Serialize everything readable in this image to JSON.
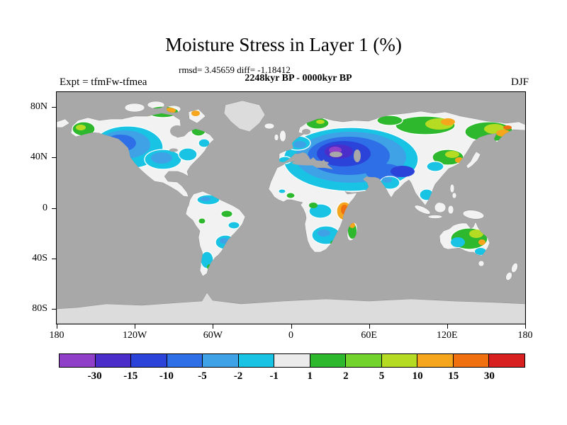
{
  "header": {
    "title": "Moisture Stress in Layer 1 (%)",
    "stats_line": "rmsd= 3.45659 diff= -1.18412",
    "period_line": "2248kyr BP - 0000kyr BP",
    "experiment_label": "Expt = tfmFw-tfmea",
    "season_label": "DJF"
  },
  "axes": {
    "lat_tick_labels": [
      "80N",
      "40N",
      "0",
      "40S",
      "80S"
    ],
    "lat_tick_degrees": [
      80,
      40,
      0,
      -40,
      -80
    ],
    "lon_tick_labels": [
      "180",
      "120W",
      "60W",
      "0",
      "60E",
      "120E",
      "180"
    ]
  },
  "colorbar": {
    "tick_labels": [
      "-30",
      "-15",
      "-10",
      "-5",
      "-2",
      "-1",
      "1",
      "2",
      "5",
      "10",
      "15",
      "30"
    ],
    "segment_colors": [
      "#9040c8",
      "#4b2ec9",
      "#2b43d8",
      "#2e6fe8",
      "#3fa2e6",
      "#19c3e3",
      "#ebebeb",
      "#2db82d",
      "#71d32b",
      "#b5dc23",
      "#f5a61d",
      "#f07010",
      "#d92020"
    ]
  },
  "chart_data": {
    "type": "heatmap",
    "subtype": "global filled-contour anomaly map, equirectangular projection",
    "title": "Moisture Stress in Layer 1 (%)",
    "statistics": {
      "rmsd": 3.45659,
      "diff": -1.18412
    },
    "comparison": "2248kyr BP - 0000kyr BP",
    "experiment": "Expt = tfmFw-tfmea",
    "season": "DJF",
    "lon_range": [
      -180,
      180
    ],
    "lat_range": [
      -92,
      92
    ],
    "lat_ticks": [
      80,
      40,
      0,
      -40,
      -80
    ],
    "lon_ticks": [
      -180,
      -120,
      -60,
      0,
      60,
      120,
      180
    ],
    "contour_levels": [
      -30,
      -15,
      -10,
      -5,
      -2,
      -1,
      1,
      2,
      5,
      10,
      15,
      30
    ],
    "palette": [
      "#9040c8",
      "#4b2ec9",
      "#2b43d8",
      "#2e6fe8",
      "#3fa2e6",
      "#19c3e3",
      "#ebebeb",
      "#2db82d",
      "#71d32b",
      "#b5dc23",
      "#f5a61d",
      "#f07010",
      "#d92020"
    ],
    "ocean_color": "#a8a8a8",
    "neutral_land_color": "#f2f2f2",
    "no_data_land_color": "#dcdcdc",
    "legend_position": "bottom",
    "grid": false,
    "regions_summary": [
      {
        "region": "Eastern Europe / Middle East / Central Asia",
        "anomaly": "strong negative, -10 to below -30 (blue to violet core)"
      },
      {
        "region": "Western and central North America",
        "anomaly": "negative, -2 to -15 (cyan to blue)"
      },
      {
        "region": "Alaska / Canadian Arctic islands",
        "anomaly": "positive, +2 to +15 (green, yellow-green, orange spots)"
      },
      {
        "region": "Scandinavia and Siberia",
        "anomaly": "positive, +2 to +30 (green bands with orange patches)"
      },
      {
        "region": "Tibet / northern India",
        "anomaly": "negative, -10 to -15 (dark blue)"
      },
      {
        "region": "East Asia / China",
        "anomaly": "mixed, mostly +1 to +10 (green) with cyan patches"
      },
      {
        "region": "East Africa / Madagascar",
        "anomaly": "positive, +10 to +30 (orange)"
      },
      {
        "region": "Central and southern Africa",
        "anomaly": "weak negative, -1 to -5 (cyan) with green spots"
      },
      {
        "region": "South America",
        "anomaly": "weak negative, -1 to -5 (cyan) with scattered green"
      },
      {
        "region": "Australia",
        "anomaly": "positive, +1 to +10 (green/yellow-green) with cyan patches"
      },
      {
        "region": "Sahara, Greenland, Antarctica",
        "anomaly": "neutral or no data (light gray)"
      }
    ]
  }
}
